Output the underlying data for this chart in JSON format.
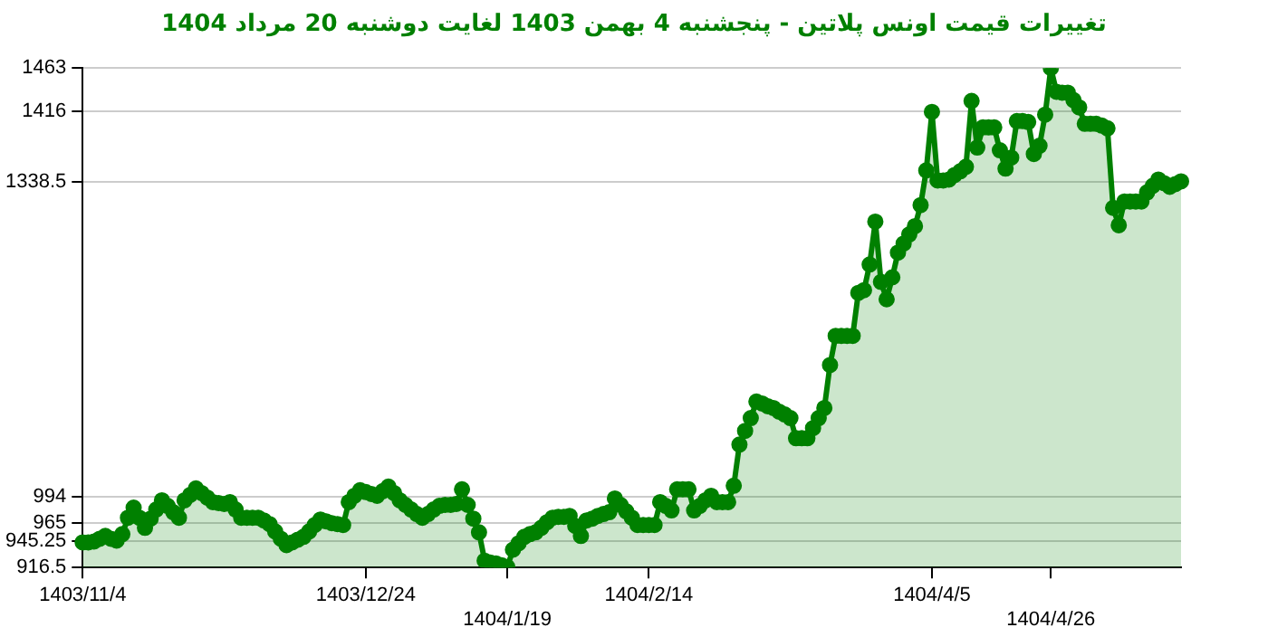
{
  "chart_data": {
    "type": "area",
    "title": "تغییرات قیمت اونس پلاتین - پنجشنبه  4 بهمن 1403 لغایت  دوشنبه  20 مرداد 1404",
    "marker": "circle",
    "grid": "y",
    "ylim": [
      916.5,
      1463
    ],
    "yticks": [
      916.5,
      945.25,
      965,
      994,
      1338.5,
      1416,
      1463
    ],
    "categories": [
      "1403/11/4",
      null,
      null,
      null,
      null,
      null,
      null,
      null,
      null,
      null,
      null,
      null,
      null,
      null,
      null,
      null,
      null,
      null,
      null,
      null,
      null,
      null,
      null,
      null,
      null,
      null,
      null,
      null,
      null,
      null,
      null,
      null,
      null,
      null,
      null,
      null,
      null,
      null,
      null,
      null,
      null,
      null,
      null,
      null,
      null,
      null,
      null,
      null,
      null,
      null,
      "1403/12/24",
      null,
      null,
      null,
      null,
      null,
      null,
      null,
      null,
      null,
      null,
      null,
      null,
      null,
      null,
      null,
      null,
      null,
      null,
      null,
      null,
      null,
      null,
      null,
      null,
      "1404/1/19",
      null,
      null,
      null,
      null,
      null,
      null,
      null,
      null,
      null,
      null,
      null,
      null,
      null,
      null,
      null,
      null,
      null,
      null,
      null,
      null,
      null,
      null,
      null,
      null,
      "1404/2/14",
      null,
      null,
      null,
      null,
      null,
      null,
      null,
      null,
      null,
      null,
      null,
      null,
      null,
      null,
      null,
      null,
      null,
      null,
      null,
      null,
      null,
      null,
      null,
      null,
      null,
      null,
      null,
      null,
      null,
      null,
      null,
      null,
      null,
      null,
      null,
      null,
      null,
      null,
      null,
      null,
      null,
      null,
      null,
      null,
      null,
      null,
      null,
      null,
      null,
      "1404/4/5",
      null,
      null,
      null,
      null,
      null,
      null,
      null,
      null,
      null,
      null,
      null,
      null,
      null,
      null,
      null,
      null,
      null,
      null,
      null,
      null,
      "1404/4/26",
      null,
      null,
      null,
      null,
      null,
      null,
      null,
      null,
      null,
      null,
      null,
      null,
      null,
      null,
      null,
      null,
      null,
      null,
      null,
      null,
      null,
      null,
      null
    ],
    "series": [
      {
        "color": "#008000",
        "values": [
          944,
          944,
          945,
          948,
          951,
          948,
          946,
          953,
          971,
          982,
          971,
          960,
          970,
          980,
          990,
          984,
          977,
          971,
          990,
          996,
          1003,
          998,
          993,
          988,
          987,
          986,
          988,
          980,
          971,
          971,
          971,
          971,
          968,
          964,
          956,
          948,
          941,
          944,
          947,
          950,
          956,
          963,
          969,
          967,
          965,
          964,
          963,
          988,
          995,
          1001,
          999,
          997,
          995,
          1000,
          1005,
          998,
          990,
          985,
          980,
          975,
          971,
          975,
          980,
          984,
          985,
          985,
          986,
          1002,
          985,
          970,
          955,
          924,
          922,
          921,
          919,
          917,
          936,
          943,
          950,
          953,
          955,
          960,
          966,
          971,
          972,
          972,
          973,
          962,
          951,
          968,
          970,
          973,
          975,
          977,
          992,
          985,
          978,
          971,
          963,
          963,
          963,
          963,
          988,
          984,
          979,
          1002,
          1002,
          1002,
          979,
          984,
          990,
          995,
          988,
          988,
          988,
          1006,
          1051,
          1066,
          1080,
          1098,
          1096,
          1093,
          1091,
          1087,
          1084,
          1080,
          1058,
          1058,
          1058,
          1069,
          1080,
          1091,
          1138,
          1170,
          1170,
          1170,
          1170,
          1217,
          1220,
          1248,
          1295,
          1229,
          1210,
          1234,
          1261,
          1271,
          1281,
          1290,
          1313,
          1351,
          1415,
          1340,
          1340,
          1341,
          1346,
          1350,
          1355,
          1427,
          1376,
          1398,
          1398,
          1398,
          1373,
          1353,
          1365,
          1405,
          1405,
          1404,
          1369,
          1378,
          1412,
          1463,
          1437,
          1436,
          1436,
          1428,
          1420,
          1402,
          1402,
          1402,
          1400,
          1397,
          1310,
          1291,
          1317,
          1317,
          1317,
          1317,
          1327,
          1334,
          1341,
          1337,
          1333,
          1336,
          1339
        ]
      }
    ]
  }
}
